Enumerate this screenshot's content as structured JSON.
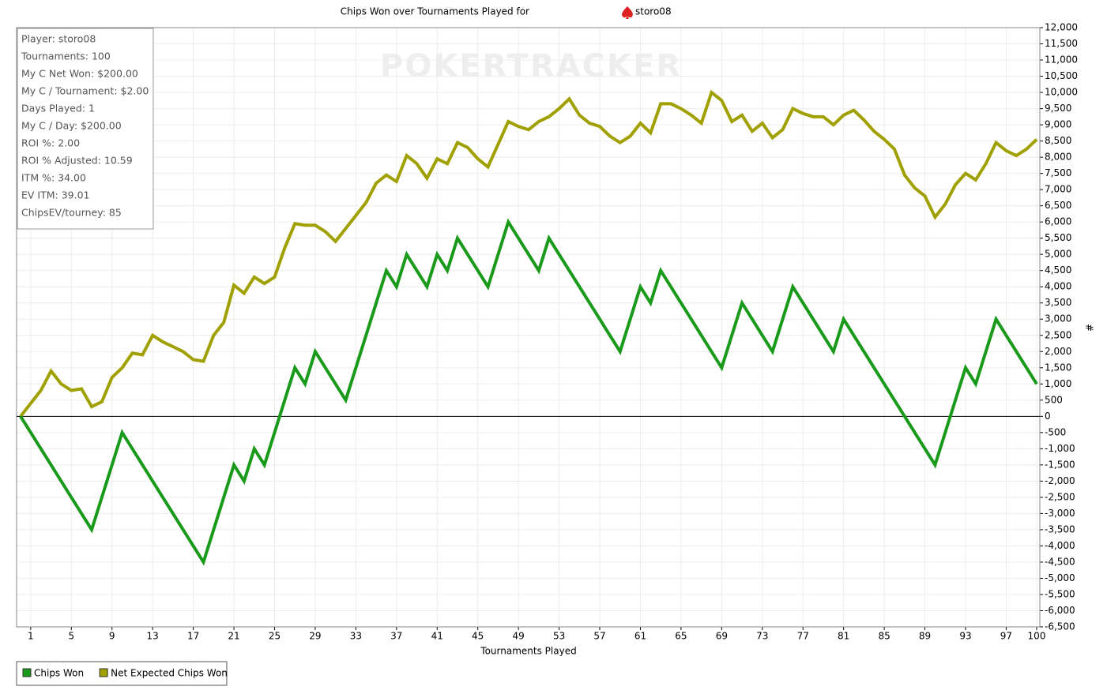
{
  "chart_data": {
    "type": "line",
    "title": "Chips Won over Tournaments Played for",
    "player": "storo08",
    "watermark": "POKERTRACKER",
    "x_label": "Tournaments Played",
    "y_label": "#",
    "stats": [
      "Player: storo08",
      "Tournaments: 100",
      "My C Net Won: $200.00",
      "My C / Tournament: $2.00",
      "Days Played: 1",
      "My C / Day: $200.00",
      "ROI %: 2.00",
      "ROI % Adjusted: 10.59",
      "ITM %: 34.00",
      "EV ITM: 39.01",
      "ChipsEV/tourney: 85"
    ],
    "x": [
      0,
      1,
      2,
      3,
      4,
      5,
      6,
      7,
      8,
      9,
      10,
      11,
      12,
      13,
      14,
      15,
      16,
      17,
      18,
      19,
      20,
      21,
      22,
      23,
      24,
      25,
      26,
      27,
      28,
      29,
      30,
      31,
      32,
      33,
      34,
      35,
      36,
      37,
      38,
      39,
      40,
      41,
      42,
      43,
      44,
      45,
      46,
      47,
      48,
      49,
      50,
      51,
      52,
      53,
      54,
      55,
      56,
      57,
      58,
      59,
      60,
      61,
      62,
      63,
      64,
      65,
      66,
      67,
      68,
      69,
      70,
      71,
      72,
      73,
      74,
      75,
      76,
      77,
      78,
      79,
      80,
      81,
      82,
      83,
      84,
      85,
      86,
      87,
      88,
      89,
      90,
      91,
      92,
      93,
      94,
      95,
      96,
      97,
      98,
      99,
      100
    ],
    "series": [
      {
        "name": "Chips Won",
        "color": "#1a9a1a",
        "values": [
          0,
          -500,
          -1000,
          -1500,
          -2000,
          -2500,
          -3000,
          -3500,
          -2500,
          -1500,
          -500,
          -1000,
          -1500,
          -2000,
          -2500,
          -3000,
          -3500,
          -4000,
          -4500,
          -3500,
          -2500,
          -1500,
          -2000,
          -1000,
          -1500,
          -500,
          500,
          1500,
          1000,
          2000,
          1500,
          1000,
          500,
          1500,
          2500,
          3500,
          4500,
          4000,
          5000,
          4500,
          4000,
          5000,
          4500,
          5500,
          5000,
          4500,
          4000,
          5000,
          6000,
          5500,
          5000,
          4500,
          5500,
          5000,
          4500,
          4000,
          3500,
          3000,
          2500,
          2000,
          3000,
          4000,
          3500,
          4500,
          4000,
          3500,
          3000,
          2500,
          2000,
          1500,
          2500,
          3500,
          3000,
          2500,
          2000,
          3000,
          4000,
          3500,
          3000,
          2500,
          2000,
          3000,
          2500,
          2000,
          1500,
          1000,
          500,
          0,
          -500,
          -1000,
          -1500,
          -500,
          500,
          1500,
          1000,
          2000,
          3000,
          2500,
          2000,
          1500,
          1000
        ]
      },
      {
        "name": "Net Expected Chips Won",
        "color": "#a0a000",
        "values": [
          0,
          400,
          800,
          1400,
          1000,
          800,
          850,
          300,
          450,
          1200,
          1500,
          1950,
          1900,
          2500,
          2300,
          2150,
          2000,
          1750,
          1700,
          2500,
          2900,
          4050,
          3800,
          4300,
          4100,
          4300,
          5200,
          5950,
          5900,
          5900,
          5700,
          5400,
          5800,
          6200,
          6600,
          7200,
          7450,
          7250,
          8050,
          7800,
          7350,
          7950,
          7800,
          8450,
          8300,
          7950,
          7700,
          8400,
          9100,
          8950,
          8850,
          9100,
          9250,
          9500,
          9800,
          9300,
          9050,
          8950,
          8650,
          8450,
          8650,
          9050,
          8750,
          9650,
          9650,
          9500,
          9300,
          9050,
          10000,
          9750,
          9100,
          9300,
          8800,
          9050,
          8600,
          8850,
          9500,
          9350,
          9250,
          9250,
          9000,
          9300,
          9450,
          9150,
          8800,
          8550,
          8250,
          7450,
          7050,
          6800,
          6150,
          6550,
          7150,
          7500,
          7300,
          7800,
          8450,
          8200,
          8050,
          8250,
          8550
        ]
      }
    ],
    "xlim": [
      0,
      100
    ],
    "xticks": [
      1,
      5,
      9,
      13,
      17,
      21,
      25,
      29,
      33,
      37,
      41,
      45,
      49,
      53,
      57,
      61,
      65,
      69,
      73,
      77,
      81,
      85,
      89,
      93,
      97,
      100
    ],
    "ylim": [
      -6500,
      12000
    ],
    "yticks": [
      {
        "value": -6500,
        "label": "-6,500"
      },
      {
        "value": -6000,
        "label": "-6,000"
      },
      {
        "value": -5500,
        "label": "-5,500"
      },
      {
        "value": -5000,
        "label": "-5,000"
      },
      {
        "value": -4500,
        "label": "-4,500"
      },
      {
        "value": -4000,
        "label": "-4,000"
      },
      {
        "value": -3500,
        "label": "-3,500"
      },
      {
        "value": -3000,
        "label": "-3,000"
      },
      {
        "value": -2500,
        "label": "-2,500"
      },
      {
        "value": -2000,
        "label": "-2,000"
      },
      {
        "value": -1500,
        "label": "-1,500"
      },
      {
        "value": -1000,
        "label": "-1,000"
      },
      -500,
      0,
      500,
      {
        "value": 1000,
        "label": "1,000"
      },
      {
        "value": 1500,
        "label": "1,500"
      },
      {
        "value": 2000,
        "label": "2,000"
      },
      {
        "value": 2500,
        "label": "2,500"
      },
      {
        "value": 3000,
        "label": "3,000"
      },
      {
        "value": 3500,
        "label": "3,500"
      },
      {
        "value": 4000,
        "label": "4,000"
      },
      {
        "value": 4500,
        "label": "4,500"
      },
      {
        "value": 5000,
        "label": "5,000"
      },
      {
        "value": 5500,
        "label": "5,500"
      },
      {
        "value": 6000,
        "label": "6,000"
      },
      {
        "value": 6500,
        "label": "6,500"
      },
      {
        "value": 7000,
        "label": "7,000"
      },
      {
        "value": 7500,
        "label": "7,500"
      },
      {
        "value": 8000,
        "label": "8,000"
      },
      {
        "value": 8500,
        "label": "8,500"
      },
      {
        "value": 9000,
        "label": "9,000"
      },
      {
        "value": 9500,
        "label": "9,500"
      },
      {
        "value": 10000,
        "label": "10,000"
      },
      {
        "value": 10500,
        "label": "10,500"
      },
      {
        "value": 11000,
        "label": "11,000"
      },
      {
        "value": 11500,
        "label": "11,500"
      },
      {
        "value": 12000,
        "label": "12,000"
      }
    ],
    "grid": true
  }
}
